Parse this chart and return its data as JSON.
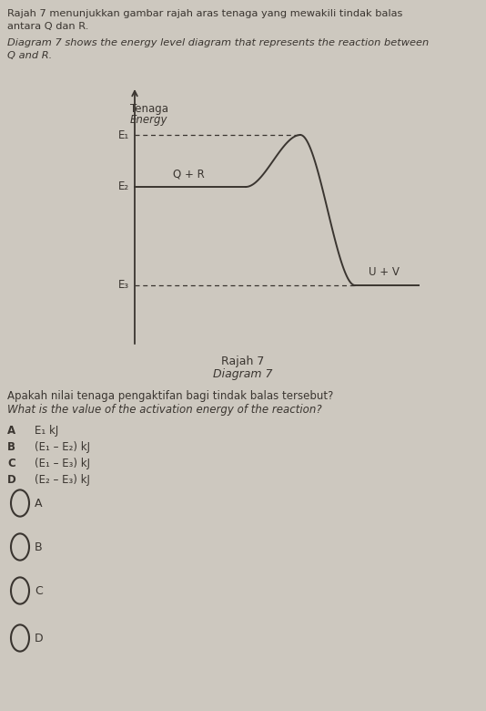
{
  "bg_color": "#cdc8bf",
  "text_color": "#3a3530",
  "title_line1": "Rajah 7 menunjukkan gambar rajah aras tenaga yang mewakili tindak balas",
  "title_line2": "antara Q dan R.",
  "title_line3": "Diagram 7 shows the energy level diagram that represents the reaction between",
  "title_line4": "Q and R.",
  "diagram_ylabel_line1": "Tenaga",
  "diagram_ylabel_line2": "Energy",
  "E1_label": "E₁",
  "E2_label": "E₂",
  "E3_label": "E₃",
  "QR_label": "Q + R",
  "UV_label": "U + V",
  "diagram_caption_line1": "Rajah 7",
  "diagram_caption_line2": "Diagram 7",
  "question_line1": "Apakah nilai tenaga pengaktifan bagi tindak balas tersebut?",
  "question_line2": "What is the value of the activation energy of the reaction?",
  "option_A_letter": "A",
  "option_A_text": "E₁ kJ",
  "option_B_letter": "B",
  "option_B_text": "(E₁ – E₂) kJ",
  "option_C_letter": "C",
  "option_C_text": "(E₁ – E₃) kJ",
  "option_D_letter": "D",
  "option_D_text": "(E₂ – E₃) kJ",
  "radio_labels": [
    "A",
    "B",
    "C",
    "D"
  ]
}
